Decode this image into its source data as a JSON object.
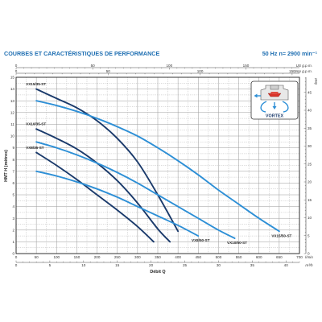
{
  "header": {
    "title": "COURBES ET CARACTÉRISTIQUES DE PERFORMANCE",
    "freq": "50 Hz   n= 2900 min⁻¹"
  },
  "pump_inset": {
    "label": "VORTEX"
  },
  "colors": {
    "dark": "#1a3a6b",
    "light": "#2d8fd6",
    "grid": "#9a9a9a",
    "accent": "#1f6fb2"
  },
  "chart_data": {
    "type": "line",
    "xlabel": "Débit Q",
    "ylabel": "HMT H (mètres)",
    "xlim": [
      0,
      700
    ],
    "ylim": [
      0,
      15
    ],
    "x_unit": "l/min",
    "y_ticks": [
      "0",
      "1",
      "2",
      "3",
      "4",
      "5",
      "6",
      "7",
      "8",
      "9",
      "10",
      "11",
      "12",
      "13",
      "14",
      "15"
    ],
    "x_ticks": [
      "0",
      "50",
      "100",
      "150",
      "200",
      "250",
      "300",
      "350",
      "400",
      "450",
      "500",
      "550",
      "600",
      "650",
      "700"
    ],
    "x_top_us_ticks": [
      "0",
      "50",
      "100",
      "150"
    ],
    "x_top_us_unit": "US g.p.m.",
    "x_top_imp_ticks": [
      "0",
      "50",
      "100",
      "150"
    ],
    "x_top_imp_unit": "Imp g.p.m.",
    "x_bottom_m3_ticks": [
      "0",
      "5",
      "10",
      "15",
      "20",
      "25",
      "30",
      "35",
      "40"
    ],
    "x_bottom_m3_unit": "m³/h",
    "y_right_ticks": [
      "0",
      "5",
      "10",
      "15",
      "20",
      "25",
      "30",
      "35",
      "40",
      "45"
    ],
    "y_right_unit": "feet",
    "series": [
      {
        "name": "VX15/35-ST",
        "style": "dark",
        "x": [
          50,
          100,
          150,
          200,
          250,
          300,
          350,
          400
        ],
        "y": [
          14.0,
          13.2,
          12.4,
          11.3,
          9.8,
          7.8,
          5.0,
          1.9
        ],
        "label_pos": "start"
      },
      {
        "name": "VX10/35-ST",
        "style": "dark",
        "x": [
          50,
          100,
          150,
          200,
          250,
          300,
          350,
          380
        ],
        "y": [
          10.6,
          9.8,
          8.9,
          7.7,
          6.2,
          4.3,
          2.1,
          1.0
        ],
        "label_pos": "start"
      },
      {
        "name": "VX8/35-ST",
        "style": "dark",
        "x": [
          50,
          100,
          150,
          200,
          250,
          300,
          340
        ],
        "y": [
          8.6,
          7.5,
          6.3,
          5.0,
          3.7,
          2.3,
          1.0
        ],
        "label_pos": "start"
      },
      {
        "name": "VX15/50-ST",
        "style": "light",
        "x": [
          50,
          100,
          150,
          200,
          250,
          300,
          350,
          400,
          450,
          500,
          550,
          600,
          650
        ],
        "y": [
          13.0,
          12.6,
          12.1,
          11.5,
          10.8,
          10.0,
          9.0,
          7.9,
          6.7,
          5.4,
          4.2,
          3.0,
          1.9
        ],
        "label_pos": "end"
      },
      {
        "name": "VX10/50-ST",
        "style": "light",
        "x": [
          50,
          100,
          150,
          200,
          250,
          300,
          350,
          400,
          450,
          500,
          540
        ],
        "y": [
          9.5,
          9.0,
          8.4,
          7.7,
          6.9,
          6.0,
          5.0,
          4.0,
          3.0,
          2.0,
          1.3
        ],
        "label_pos": "end"
      },
      {
        "name": "VX8/50-ST",
        "style": "light",
        "x": [
          50,
          100,
          150,
          200,
          250,
          300,
          350,
          400,
          450
        ],
        "y": [
          7.0,
          6.6,
          6.1,
          5.5,
          4.8,
          4.0,
          3.2,
          2.4,
          1.5
        ],
        "label_pos": "end"
      }
    ]
  }
}
